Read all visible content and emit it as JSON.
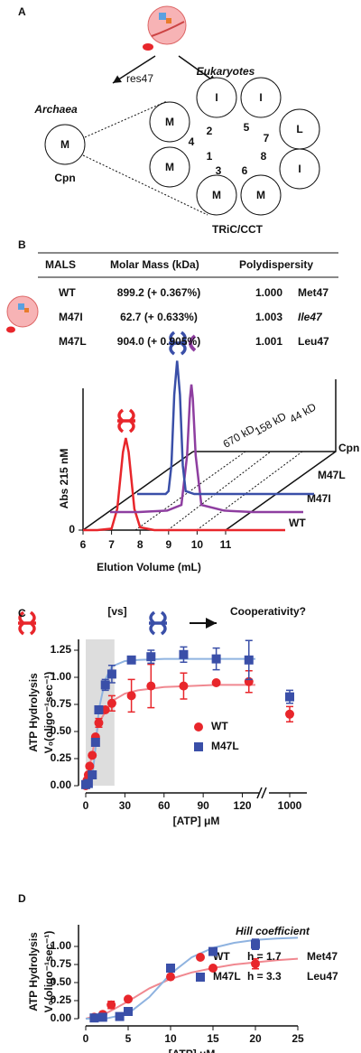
{
  "panel_a": {
    "label": "A",
    "residue": "res47",
    "archaea": "Archaea",
    "eukaryotes": "Eukaryotes",
    "cpn": {
      "letter": "M",
      "color": "#e8262b",
      "label": "Cpn"
    },
    "tric": {
      "label": "TRiC/CCT",
      "subunits": [
        {
          "letter": "M",
          "color": "#e8262b"
        },
        {
          "letter": "I",
          "color": "#8e3ea0"
        },
        {
          "letter": "I",
          "color": "#8e3ea0"
        },
        {
          "letter": "L",
          "color": "#3a4fa8"
        },
        {
          "letter": "I",
          "color": "#8e3ea0"
        },
        {
          "letter": "M",
          "color": "#e8262b"
        },
        {
          "letter": "M",
          "color": "#e8262b"
        },
        {
          "letter": "M",
          "color": "#e8262b"
        }
      ],
      "numbers": [
        4,
        2,
        5,
        7,
        1,
        3,
        6,
        8
      ]
    }
  },
  "panel_b": {
    "label": "B",
    "table": {
      "headers": [
        "MALS",
        "Molar Mass (kDa)",
        "Polydispersity"
      ],
      "rows": [
        [
          "WT",
          "899.2 (+ 0.367%)",
          "1.000",
          "Met47"
        ],
        [
          "M47I",
          "62.7 (+ 0.633%)",
          "1.003",
          "Ile47"
        ],
        [
          "M47L",
          "904.0 (+ 0.905%)",
          "1.001",
          "Leu47"
        ]
      ],
      "row_colors": [
        "#e8262b",
        "#8e3ea0",
        "#3a4fa8"
      ]
    }
  },
  "chart_data": [
    {
      "type": "line",
      "ylabel": "Abs 215 nM",
      "xlabel": "Elution Volume (mL)",
      "xlim": [
        6,
        11
      ],
      "xticks": [
        6,
        7,
        8,
        9,
        10,
        11
      ],
      "ylim": [
        0,
        1
      ],
      "yticks": [
        0
      ],
      "annotations": [
        "670 kD",
        "158 kD",
        "44 kD",
        "Cpn"
      ],
      "series": [
        {
          "name": "WT",
          "color": "#e8262b",
          "x": [
            6,
            6.5,
            7,
            7.2,
            7.4,
            7.5,
            7.6,
            7.8,
            8,
            8.5,
            9,
            10,
            11
          ],
          "values": [
            0,
            0,
            0.01,
            0.15,
            0.55,
            0.65,
            0.55,
            0.15,
            0.02,
            0,
            0,
            0,
            0
          ]
        },
        {
          "name": "M47I",
          "color": "#8e3ea0",
          "x": [
            6,
            7,
            8,
            8.5,
            8.7,
            8.8,
            8.85,
            8.9,
            9,
            9.2,
            10,
            11
          ],
          "values": [
            0,
            0,
            0.01,
            0.05,
            0.4,
            0.8,
            0.9,
            0.8,
            0.4,
            0.05,
            0.01,
            0
          ]
        },
        {
          "name": "M47L",
          "color": "#3a4fa8",
          "x": [
            6,
            7,
            7.1,
            7.2,
            7.3,
            7.4,
            7.5,
            7.6,
            7.7,
            8,
            9,
            10,
            11
          ],
          "values": [
            0,
            0,
            0.02,
            0.2,
            0.7,
            0.94,
            0.7,
            0.2,
            0.02,
            0,
            0,
            0,
            0
          ]
        }
      ]
    },
    {
      "type": "scatter",
      "panel": "C",
      "annotations": [
        "[vs]",
        "Cooperativity?"
      ],
      "ylabel": [
        "ATP Hydrolysis",
        "V₀(oligo⁻¹sec⁻¹)"
      ],
      "xlabel": "[ATP]  μM",
      "xlim": [
        0,
        1010
      ],
      "x_break": [
        130,
        990
      ],
      "shaded_xrange": [
        0,
        22
      ],
      "xticks": [
        0,
        30,
        60,
        90,
        120,
        1000
      ],
      "ylim": [
        0,
        1.35
      ],
      "yticks": [
        {
          "value": 0,
          "label": "0.00"
        },
        0.25,
        {
          "value": 0.5,
          "label": "0.50"
        },
        0.75,
        {
          "value": 1,
          "label": "1.00"
        },
        1.25
      ],
      "series": [
        {
          "name": "WT",
          "color": "#e8262b",
          "marker": "circle",
          "x": [
            0,
            1,
            2,
            3,
            5,
            7.5,
            10,
            15,
            20,
            35,
            50,
            75,
            100,
            125,
            1000
          ],
          "values": [
            0,
            0.05,
            0.1,
            0.18,
            0.28,
            0.45,
            0.58,
            0.7,
            0.76,
            0.83,
            0.92,
            0.92,
            0.95,
            0.96,
            0.66
          ],
          "errors": [
            null,
            null,
            null,
            null,
            null,
            null,
            0.04,
            null,
            0.07,
            0.15,
            0.2,
            0.12,
            null,
            0.1,
            0.07
          ],
          "fit": {
            "color": "#f08890",
            "x": [
              0,
              5,
              10,
              20,
              30,
              40,
              60,
              80,
              100,
              120,
              130
            ],
            "values": [
              0,
              0.3,
              0.58,
              0.78,
              0.85,
              0.88,
              0.91,
              0.92,
              0.93,
              0.93,
              0.93
            ]
          }
        },
        {
          "name": "M47L",
          "color": "#3a4fa8",
          "marker": "square",
          "x": [
            0,
            2,
            5,
            7.5,
            10,
            15,
            20,
            35,
            50,
            75,
            100,
            125,
            1000
          ],
          "values": [
            0.01,
            0.02,
            0.1,
            0.4,
            0.7,
            0.93,
            1.03,
            1.16,
            1.19,
            1.21,
            1.17,
            1.16,
            0.82
          ],
          "errors": [
            null,
            null,
            null,
            null,
            0.03,
            0.05,
            0.08,
            0.03,
            0.06,
            0.07,
            0.1,
            0.18,
            0.06
          ],
          "fit": {
            "color": "#8fb3e0",
            "x": [
              0,
              5,
              7.5,
              10,
              15,
              20,
              30,
              40,
              60,
              80,
              100,
              120,
              130
            ],
            "values": [
              0,
              0.08,
              0.35,
              0.7,
              0.98,
              1.1,
              1.15,
              1.16,
              1.17,
              1.17,
              1.17,
              1.17,
              1.17
            ]
          }
        }
      ]
    },
    {
      "type": "scatter",
      "panel": "D",
      "legend_title": "Hill coefficient",
      "ylabel": [
        "ATP Hydrolysis",
        "V₀(oligo⁻¹sec⁻¹)"
      ],
      "xlabel": "[ATP]  μM",
      "xlim": [
        0,
        25
      ],
      "xticks": [
        0,
        5,
        10,
        15,
        20,
        25
      ],
      "ylim": [
        0,
        1.3
      ],
      "yticks": [
        {
          "value": 0,
          "label": "0.00"
        },
        0.25,
        {
          "value": 0.5,
          "label": "0.50"
        },
        0.75,
        {
          "value": 1,
          "label": "1.00"
        }
      ],
      "series": [
        {
          "name": "WT",
          "hill": "h = 1.7",
          "residue": "Met47",
          "color": "#e8262b",
          "marker": "circle",
          "x": [
            1,
            2,
            3,
            5,
            10,
            15,
            20
          ],
          "values": [
            0.02,
            0.06,
            0.19,
            0.27,
            0.58,
            0.7,
            0.76
          ],
          "errors": [
            null,
            null,
            0.05,
            null,
            0.03,
            null,
            0.07
          ],
          "fit": {
            "color": "#f08890",
            "x": [
              0,
              2.5,
              5,
              7.5,
              10,
              12.5,
              15,
              17.5,
              20,
              22.5,
              25
            ],
            "values": [
              0,
              0.08,
              0.24,
              0.42,
              0.55,
              0.64,
              0.7,
              0.75,
              0.78,
              0.81,
              0.83
            ]
          }
        },
        {
          "name": "M47L",
          "hill": "h = 3.3",
          "residue": "Leu47",
          "color": "#3a4fa8",
          "marker": "square",
          "x": [
            1,
            2,
            4,
            5,
            10,
            15,
            20
          ],
          "values": [
            0.01,
            0.02,
            0.03,
            0.1,
            0.7,
            0.93,
            1.03
          ],
          "errors": [
            null,
            null,
            null,
            null,
            0.03,
            null,
            0.07
          ],
          "fit": {
            "color": "#8fb3e0",
            "x": [
              0,
              2.5,
              5,
              7.5,
              10,
              12.5,
              15,
              17.5,
              20,
              22.5,
              25
            ],
            "values": [
              0,
              0.005,
              0.07,
              0.3,
              0.62,
              0.85,
              0.98,
              1.05,
              1.09,
              1.11,
              1.12
            ]
          }
        }
      ]
    }
  ]
}
